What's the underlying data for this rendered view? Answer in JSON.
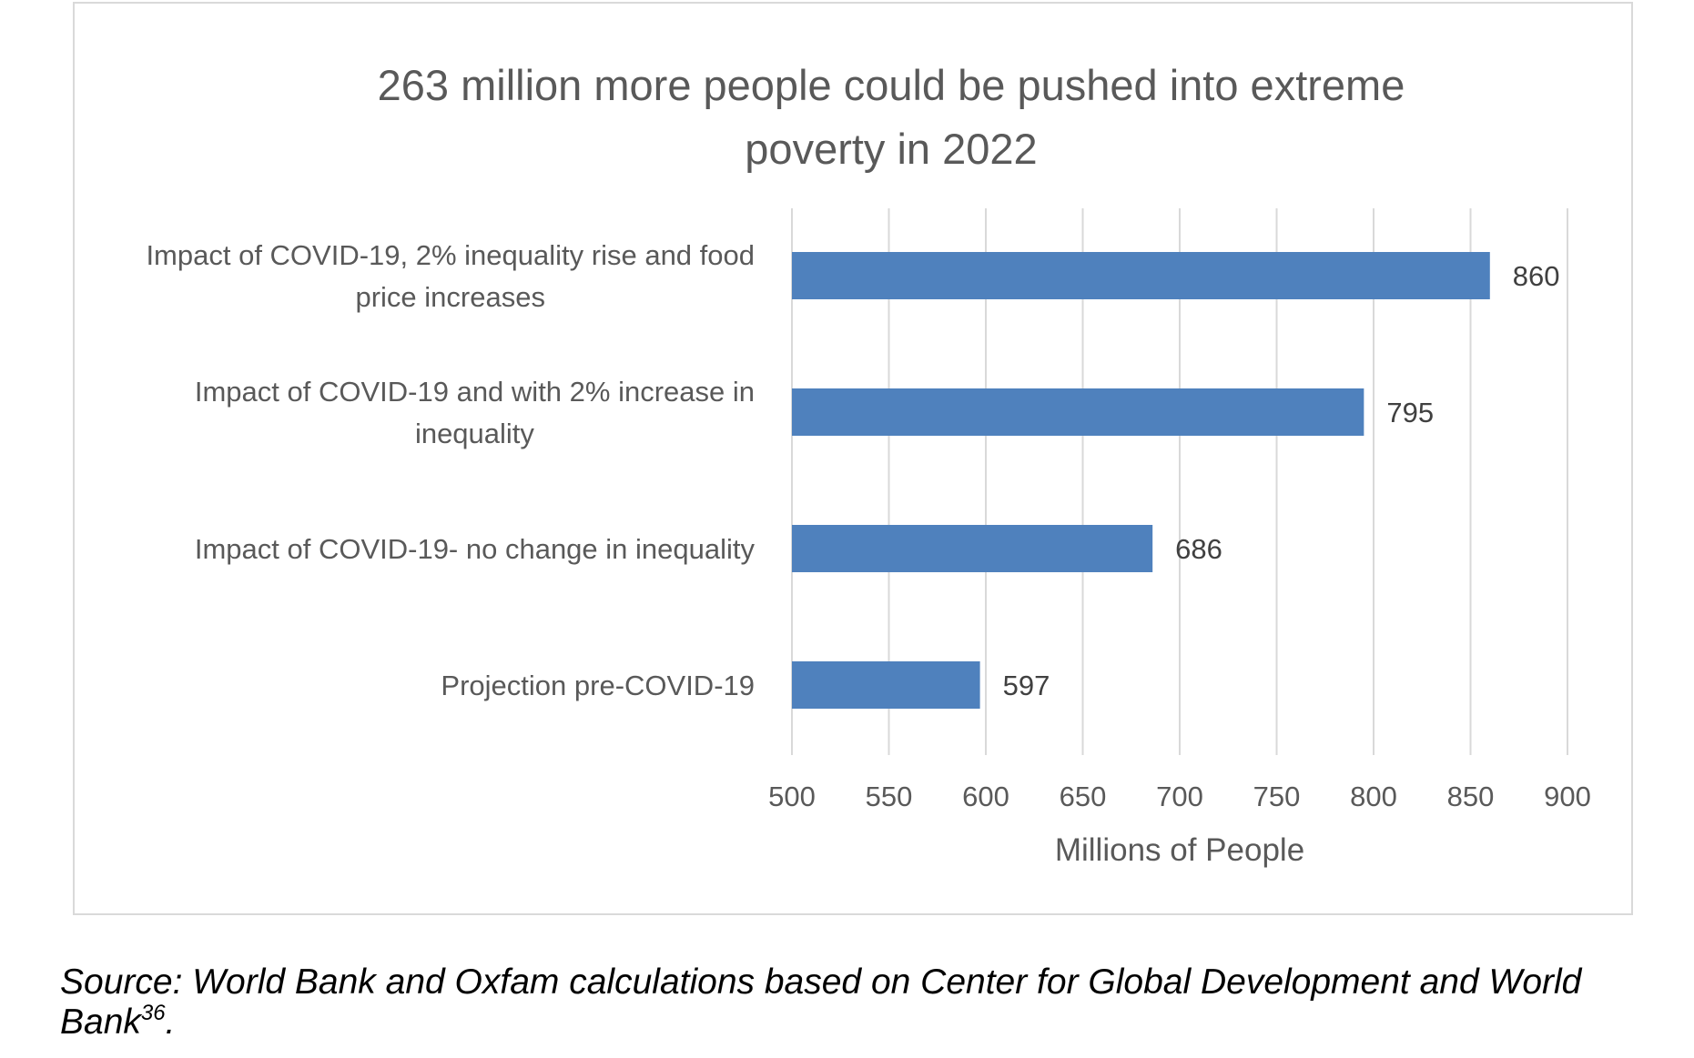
{
  "chart_data": {
    "type": "bar",
    "orientation": "horizontal",
    "title_lines": [
      "263 million more people could be pushed into extreme",
      "poverty in 2022"
    ],
    "xlabel": "Millions of People",
    "ylabel": "",
    "xlim": [
      500,
      900
    ],
    "x_ticks": [
      500,
      550,
      600,
      650,
      700,
      750,
      800,
      850,
      900
    ],
    "grid": "vertical",
    "legend": "none",
    "bar_color": "#4f81bd",
    "categories": [
      {
        "label_lines": [
          "Impact of COVID-19, 2% inequality rise and food",
          "price increases"
        ],
        "value": 860,
        "value_label": "860"
      },
      {
        "label_lines": [
          "Impact of COVID-19 and with 2% increase in",
          "inequality"
        ],
        "value": 795,
        "value_label": "795"
      },
      {
        "label_lines": [
          "Impact of COVID-19- no change in inequality"
        ],
        "value": 686,
        "value_label": "686"
      },
      {
        "label_lines": [
          "Projection pre-COVID-19"
        ],
        "value": 597,
        "value_label": "597"
      }
    ]
  },
  "source": {
    "text": "Source: World Bank and Oxfam calculations based on Center for Global Development and World Bank",
    "footnote_ref": "36",
    "end_punct": "."
  }
}
